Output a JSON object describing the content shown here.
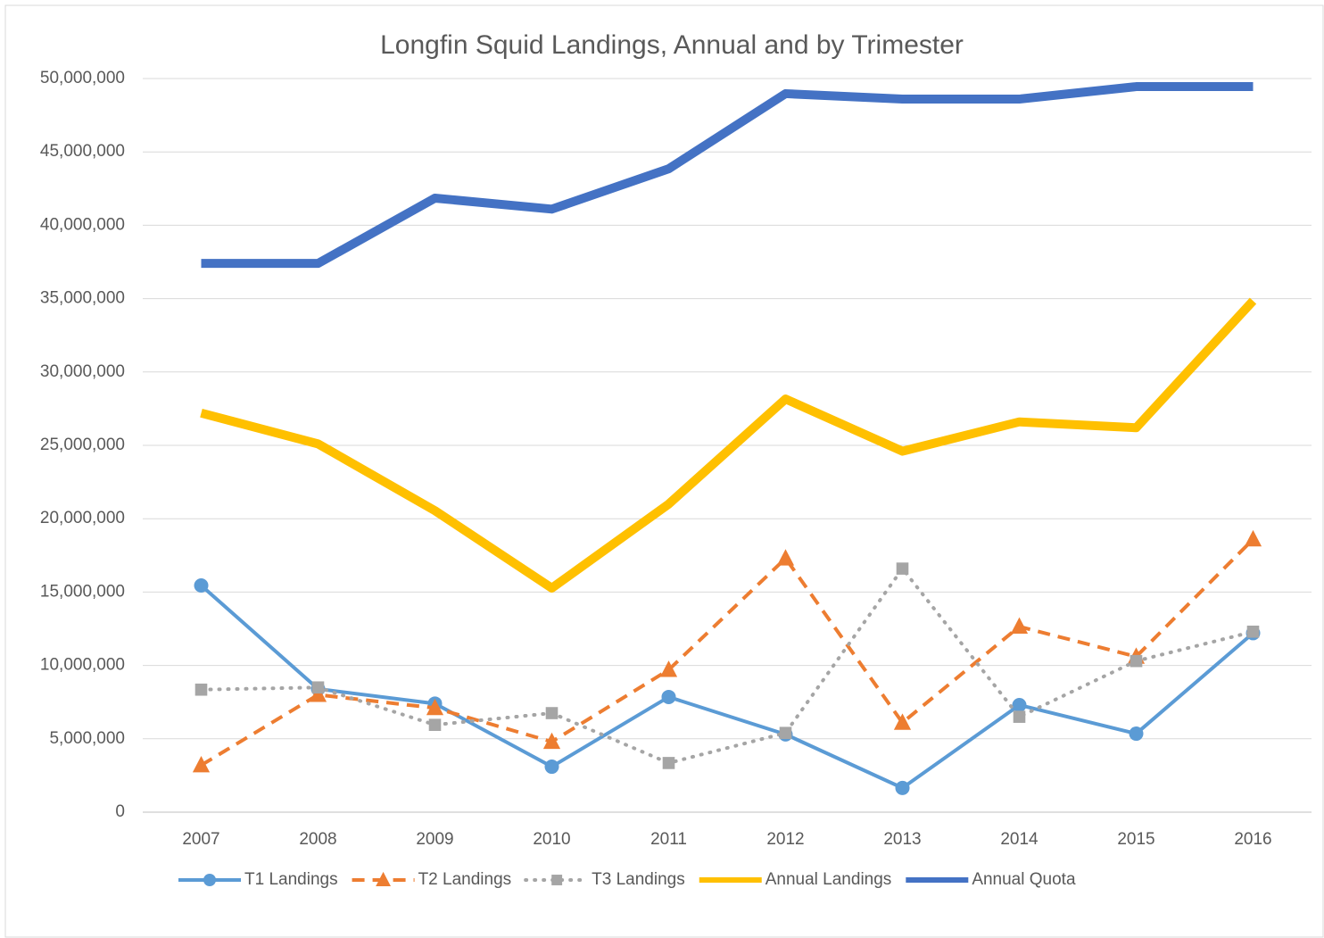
{
  "chart_data": {
    "type": "line",
    "title": "Longfin Squid Landings, Annual and by Trimester",
    "categories": [
      "2007",
      "2008",
      "2009",
      "2010",
      "2011",
      "2012",
      "2013",
      "2014",
      "2015",
      "2016"
    ],
    "ylim": [
      0,
      50000000
    ],
    "yticks": [
      0,
      {
        "value": 5000000,
        "label": "5,000,000"
      },
      {
        "value": 10000000,
        "label": "10,000,000"
      },
      {
        "value": 15000000,
        "label": "15,000,000"
      },
      {
        "value": 20000000,
        "label": "20,000,000"
      },
      {
        "value": 25000000,
        "label": "25,000,000"
      },
      {
        "value": 30000000,
        "label": "30,000,000"
      },
      {
        "value": 35000000,
        "label": "35,000,000"
      },
      {
        "value": 40000000,
        "label": "40,000,000"
      },
      {
        "value": 45000000,
        "label": "45,000,000"
      },
      {
        "value": 50000000,
        "label": "50,000,000"
      }
    ],
    "grid": true,
    "legend": "bottom",
    "series": [
      {
        "name": "T1 Landings",
        "color": "#5b9bd5",
        "marker": "circle",
        "line_style": "solid",
        "line_width": 4,
        "values": [
          15450000,
          8400000,
          7400000,
          3100000,
          7850000,
          5300000,
          1650000,
          7300000,
          5350000,
          12200000
        ]
      },
      {
        "name": "T2 Landings",
        "color": "#ed7d31",
        "marker": "triangle",
        "line_style": "dashed",
        "line_width": 4,
        "values": [
          3200000,
          8000000,
          7100000,
          4800000,
          9700000,
          17300000,
          6100000,
          12650000,
          10600000,
          18600000
        ]
      },
      {
        "name": "T3 Landings",
        "color": "#a5a5a5",
        "marker": "square",
        "line_style": "dotted",
        "line_width": 4,
        "values": [
          8350000,
          8500000,
          5950000,
          6750000,
          3350000,
          5400000,
          16600000,
          6500000,
          10300000,
          12300000
        ]
      },
      {
        "name": "Annual Landings",
        "color": "#ffc000",
        "marker": "none",
        "line_style": "solid",
        "line_width": 10,
        "values": [
          27200000,
          25100000,
          20550000,
          15270000,
          21000000,
          28160000,
          24600000,
          26600000,
          26200000,
          34850000
        ]
      },
      {
        "name": "Annual Quota",
        "color": "#4472c4",
        "marker": "none",
        "line_style": "solid",
        "line_width": 10,
        "values": [
          37400000,
          37400000,
          41850000,
          41100000,
          43850000,
          48970000,
          48600000,
          48600000,
          49450000,
          49450000
        ]
      }
    ]
  }
}
